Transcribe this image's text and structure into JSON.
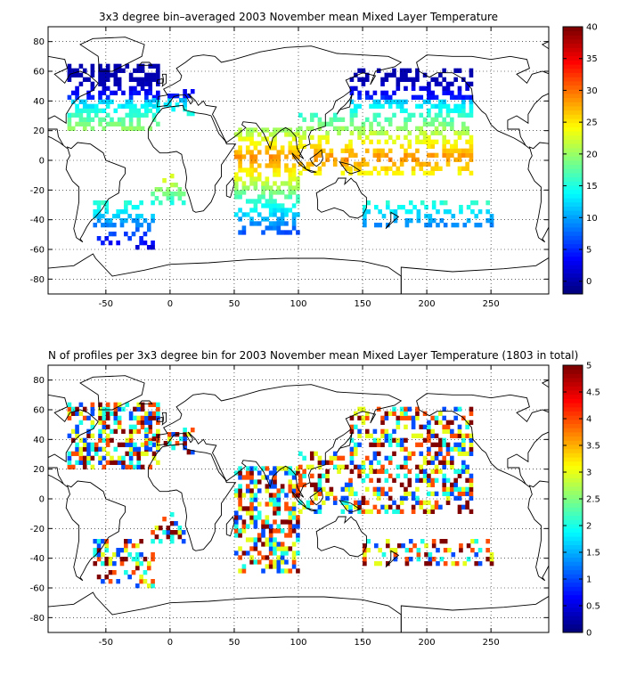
{
  "panels": [
    {
      "title": "3x3 degree bin–averaged 2003 November mean Mixed Layer Temperature",
      "chart_data": {
        "type": "heatmap",
        "xlim": [
          -95,
          295
        ],
        "ylim": [
          -90,
          90
        ],
        "x_ticks": [
          "-50",
          "0",
          "50",
          "100",
          "150",
          "200",
          "250"
        ],
        "y_ticks": [
          "80",
          "60",
          "40",
          "20",
          "0",
          "-20",
          "-40",
          "-60",
          "-80"
        ],
        "colorbar": {
          "min": -2,
          "max": 40,
          "ticks": [
            "40",
            "35",
            "30",
            "25",
            "20",
            "15",
            "10",
            "5",
            "0"
          ]
        },
        "grid": true,
        "colormap": "jet"
      }
    },
    {
      "title": "N of profiles per 3x3 degree bin for 2003 November mean Mixed Layer Temperature  (1803 in total)",
      "chart_data": {
        "type": "heatmap",
        "xlim": [
          -95,
          295
        ],
        "ylim": [
          -90,
          90
        ],
        "x_ticks": [
          "-50",
          "0",
          "50",
          "100",
          "150",
          "200",
          "250"
        ],
        "y_ticks": [
          "80",
          "60",
          "40",
          "20",
          "0",
          "-20",
          "-40",
          "-60",
          "-80"
        ],
        "colorbar": {
          "min": 0,
          "max": 5,
          "ticks": [
            "5",
            "4.5",
            "4",
            "3.5",
            "3",
            "2.5",
            "2",
            "1.5",
            "1",
            "0.5",
            "0"
          ]
        },
        "grid": true,
        "colormap": "jet"
      }
    }
  ]
}
